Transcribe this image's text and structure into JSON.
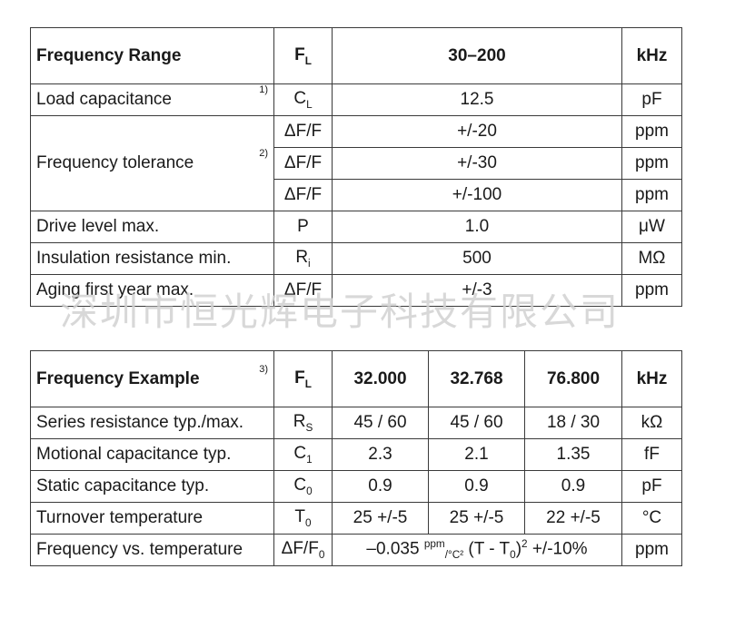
{
  "table1": {
    "header": {
      "param": "Frequency Range",
      "symbol": "F",
      "symbol_sub": "L",
      "value": "30–200",
      "unit": "kHz"
    },
    "load": {
      "param": "Load capacitance",
      "note": "1)",
      "symbol": "C",
      "symbol_sub": "L",
      "value": "12.5",
      "unit": "pF"
    },
    "tolerance": {
      "param": "Frequency tolerance",
      "note": "2)",
      "rows": [
        {
          "symbol": "ΔF/F",
          "value": "+/-20",
          "unit": "ppm"
        },
        {
          "symbol": "ΔF/F",
          "value": "+/-30",
          "unit": "ppm"
        },
        {
          "symbol": "ΔF/F",
          "value": "+/-100",
          "unit": "ppm"
        }
      ]
    },
    "drive": {
      "param": "Drive level max.",
      "symbol": "P",
      "value": "1.0",
      "unit": "μW"
    },
    "insulation": {
      "param": "Insulation resistance min.",
      "symbol": "R",
      "symbol_sub": "i",
      "value": "500",
      "unit": "MΩ"
    },
    "aging": {
      "param": "Aging first year max.",
      "symbol": "ΔF/F",
      "value": "+/-3",
      "unit": "ppm"
    }
  },
  "watermark": "深圳市恒光辉电子科技有限公司",
  "table2": {
    "header": {
      "param": "Frequency Example",
      "note": "3)",
      "symbol": "F",
      "symbol_sub": "L",
      "f1": "32.000",
      "f2": "32.768",
      "f3": "76.800",
      "unit": "kHz"
    },
    "series_res": {
      "param": "Series resistance typ./max.",
      "symbol": "R",
      "symbol_sub": "S",
      "v1": "45 / 60",
      "v2": "45 / 60",
      "v3": "18 / 30",
      "unit": "kΩ"
    },
    "motional": {
      "param": "Motional capacitance typ.",
      "symbol": "C",
      "symbol_sub": "1",
      "v1": "2.3",
      "v2": "2.1",
      "v3": "1.35",
      "unit": "fF"
    },
    "static": {
      "param": "Static capacitance typ.",
      "symbol": "C",
      "symbol_sub": "0",
      "v1": "0.9",
      "v2": "0.9",
      "v3": "0.9",
      "unit": "pF"
    },
    "turnover": {
      "param": "Turnover temperature",
      "symbol": "T",
      "symbol_sub": "0",
      "v1": "25 +/-5",
      "v2": "25 +/-5",
      "v3": "22 +/-5",
      "unit": "°C"
    },
    "freq_temp": {
      "param": "Frequency vs. temperature",
      "symbol": "ΔF/F",
      "symbol_sub": "0",
      "formula_lead": "–0.035 ",
      "formula_num": "ppm",
      "formula_den": "/°C²",
      "formula_mid": " (T - T",
      "formula_sub": "0",
      "formula_close": ")",
      "formula_pow": "2",
      "formula_tail": " +/-10%",
      "unit": "ppm"
    }
  }
}
